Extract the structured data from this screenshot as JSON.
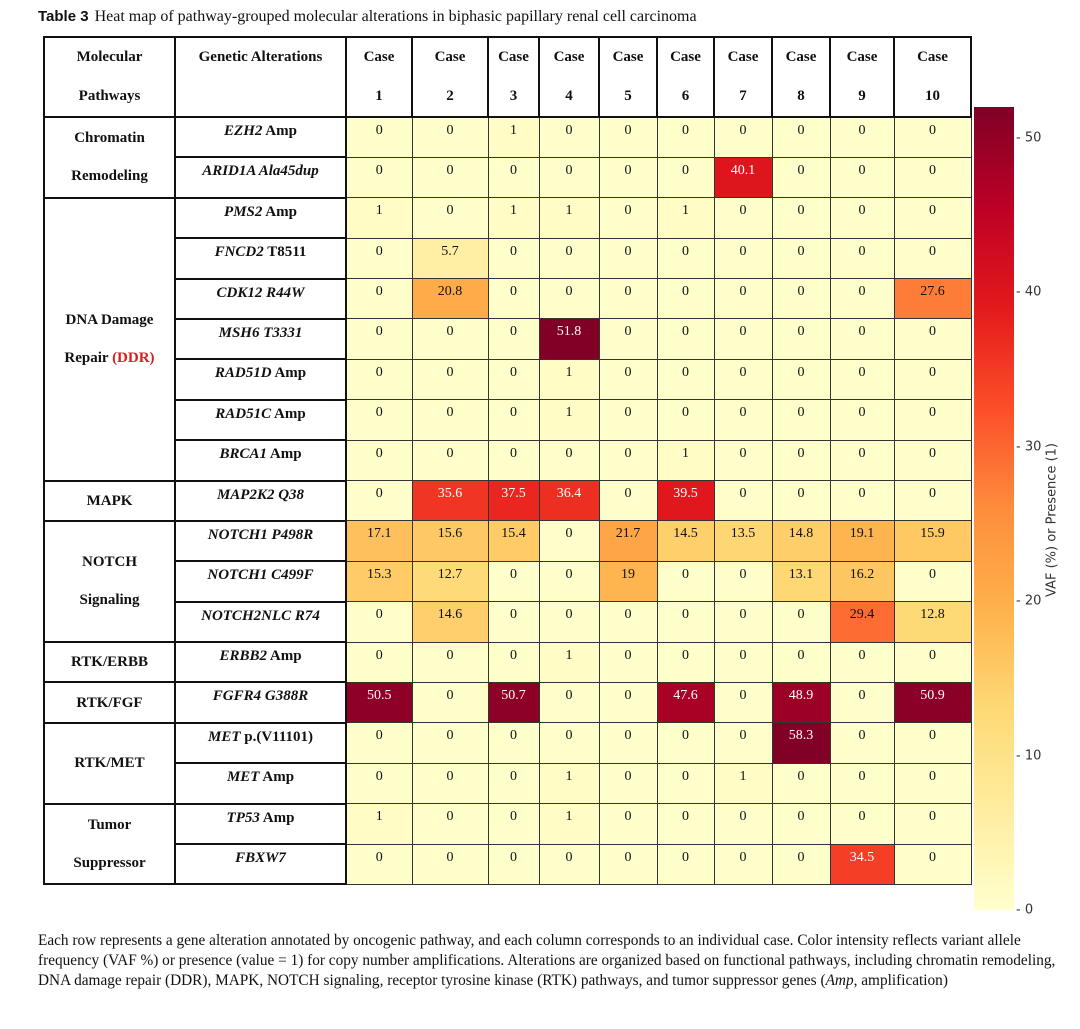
{
  "title": {
    "label": "Table 3",
    "text": "Heat map of pathway-grouped molecular alterations in biphasic papillary renal cell carcinoma"
  },
  "header": {
    "pathway": [
      "Molecular",
      "Pathways"
    ],
    "alteration": "Genetic Alterations",
    "cases": [
      [
        "Case",
        "1"
      ],
      [
        "Case",
        "2"
      ],
      [
        "Case",
        "3"
      ],
      [
        "Case",
        "4"
      ],
      [
        "Case",
        "5"
      ],
      [
        "Case",
        "6"
      ],
      [
        "Case",
        "7"
      ],
      [
        "Case",
        "8"
      ],
      [
        "Case",
        "9"
      ],
      [
        "Case",
        "10"
      ]
    ]
  },
  "groups": [
    {
      "lines": [
        "Chromatin",
        "Remodeling"
      ],
      "highlight": "",
      "rows": [
        {
          "gene": "EZH2",
          "variant": " Amp",
          "values": [
            0,
            0,
            1,
            0,
            0,
            0,
            0,
            0,
            0,
            0
          ]
        },
        {
          "gene": "ARID1A Ala45dup",
          "variant": "",
          "values": [
            0,
            0,
            0,
            0,
            0,
            0,
            40.1,
            0,
            0,
            0
          ]
        }
      ]
    },
    {
      "lines": [
        "DNA Damage",
        "Repair "
      ],
      "highlight": "(DDR)",
      "rows": [
        {
          "gene": "PMS2",
          "variant": " Amp",
          "values": [
            1,
            0,
            1,
            1,
            0,
            1,
            0,
            0,
            0,
            0
          ]
        },
        {
          "gene": "FNCD2",
          "variant": " T8511",
          "values": [
            0,
            5.7,
            0,
            0,
            0,
            0,
            0,
            0,
            0,
            0
          ]
        },
        {
          "gene": "CDK12 R44W",
          "variant": "",
          "values": [
            0,
            20.8,
            0,
            0,
            0,
            0,
            0,
            0,
            0,
            27.6
          ]
        },
        {
          "gene": "MSH6 T3331",
          "variant": "",
          "values": [
            0,
            0,
            0,
            51.8,
            0,
            0,
            0,
            0,
            0,
            0
          ]
        },
        {
          "gene": "RAD51D",
          "variant": " Amp",
          "values": [
            0,
            0,
            0,
            1,
            0,
            0,
            0,
            0,
            0,
            0
          ]
        },
        {
          "gene": "RAD51C",
          "variant": " Amp",
          "values": [
            0,
            0,
            0,
            1,
            0,
            0,
            0,
            0,
            0,
            0
          ]
        },
        {
          "gene": "BRCA1",
          "variant": " Amp",
          "values": [
            0,
            0,
            0,
            0,
            0,
            1,
            0,
            0,
            0,
            0
          ]
        }
      ]
    },
    {
      "lines": [
        "MAPK"
      ],
      "highlight": "",
      "rows": [
        {
          "gene": "MAP2K2 Q38",
          "variant": "",
          "values": [
            0,
            35.6,
            37.5,
            36.4,
            0,
            39.5,
            0,
            0,
            0,
            0
          ]
        }
      ]
    },
    {
      "lines": [
        "NOTCH",
        "Signaling"
      ],
      "highlight": "",
      "rows": [
        {
          "gene": "NOTCH1 P498R",
          "variant": "",
          "values": [
            17.1,
            15.6,
            15.4,
            0,
            21.7,
            14.5,
            13.5,
            14.8,
            19.1,
            15.9
          ]
        },
        {
          "gene": "NOTCH1 C499F",
          "variant": "",
          "values": [
            15.3,
            12.7,
            0,
            0,
            19,
            0,
            0,
            13.1,
            16.2,
            0
          ]
        },
        {
          "gene": "NOTCH2NLC R74",
          "variant": "",
          "values": [
            0,
            14.6,
            0,
            0,
            0,
            0,
            0,
            0,
            29.4,
            12.8
          ]
        }
      ]
    },
    {
      "lines": [
        "RTK/ERBB"
      ],
      "highlight": "",
      "rows": [
        {
          "gene": "ERBB2",
          "variant": " Amp",
          "values": [
            0,
            0,
            0,
            1,
            0,
            0,
            0,
            0,
            0,
            0
          ]
        }
      ]
    },
    {
      "lines": [
        "RTK/FGF"
      ],
      "highlight": "",
      "rows": [
        {
          "gene": "FGFR4 G388R",
          "variant": "",
          "values": [
            50.5,
            0,
            50.7,
            0,
            0,
            47.6,
            0,
            48.9,
            0,
            50.9
          ]
        }
      ]
    },
    {
      "lines": [
        "RTK/MET"
      ],
      "highlight": "",
      "rows": [
        {
          "gene": "MET",
          "variant": " p.(V11101)",
          "values": [
            0,
            0,
            0,
            0,
            0,
            0,
            0,
            58.3,
            0,
            0
          ]
        },
        {
          "gene": "MET",
          "variant": " Amp",
          "values": [
            0,
            0,
            0,
            1,
            0,
            0,
            1,
            0,
            0,
            0
          ]
        }
      ]
    },
    {
      "lines": [
        "Tumor",
        "Suppressor"
      ],
      "highlight": "",
      "rows": [
        {
          "gene": "TP53",
          "variant": " Amp",
          "values": [
            1,
            0,
            0,
            1,
            0,
            0,
            0,
            0,
            0,
            0
          ]
        },
        {
          "gene": "FBXW7",
          "variant": "",
          "values": [
            0,
            0,
            0,
            0,
            0,
            0,
            0,
            0,
            34.5,
            0
          ]
        }
      ]
    }
  ],
  "colorbar": {
    "label": "VAF (%) or Presence (1)",
    "colormap": "YlOrRd",
    "range": [
      0,
      52
    ],
    "ticks": [
      "0",
      "10",
      "20",
      "30",
      "40",
      "50"
    ],
    "highlight_color": "#d42020"
  },
  "caption": {
    "text": "Each row represents a gene alteration annotated by oncogenic pathway, and each column corresponds to an individual case. Color intensity reflects variant allele frequency (VAF %) or presence (value = 1) for copy number amplifications. Alterations are organized based on functional pathways, including chromatin remodeling, DNA damage repair (DDR), MAPK, NOTCH signaling, receptor tyrosine kinase (RTK) pathways, and tumor suppressor genes (",
    "italic": "Amp",
    "tail": ", amplification)"
  }
}
